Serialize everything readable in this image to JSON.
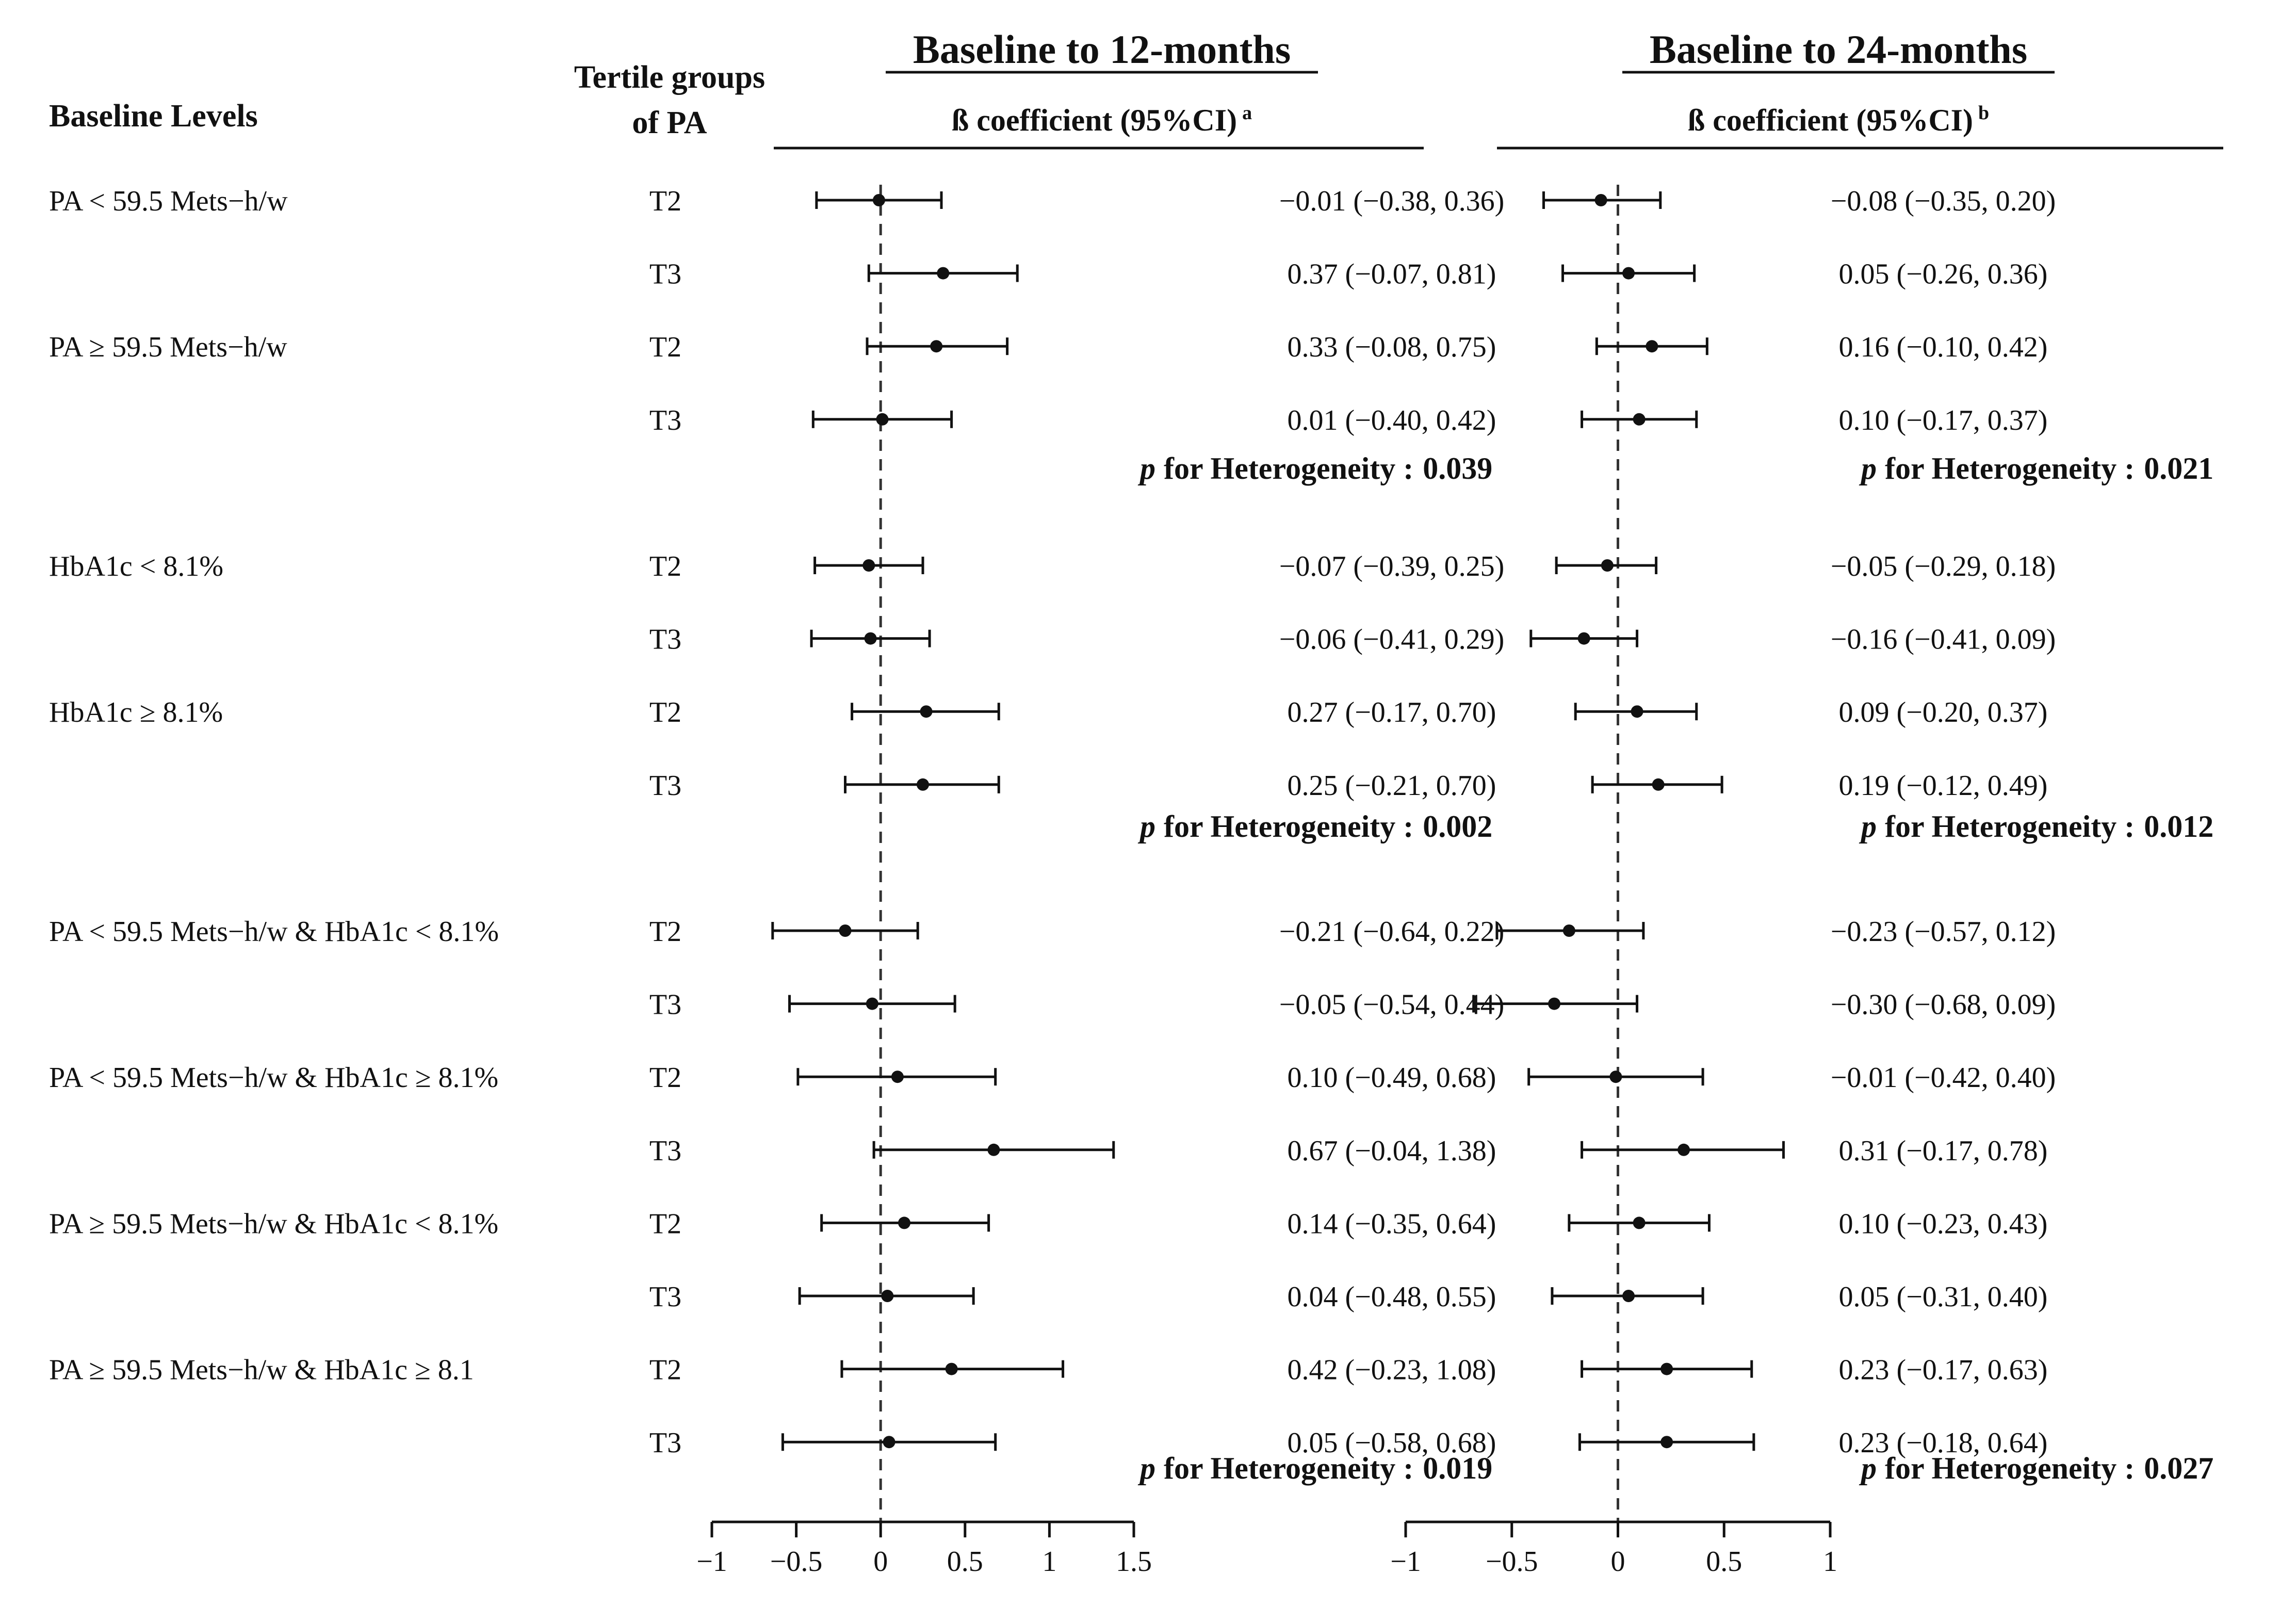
{
  "header": {
    "baseline_levels": "Baseline Levels",
    "tertile_line1": "Tertile groups",
    "tertile_line2": "of PA"
  },
  "colors": {
    "ink": "#111111",
    "background": "#ffffff"
  },
  "groups": [
    {
      "label": "PA < 59.5 Mets−h/w",
      "tertiles": [
        "T2",
        "T3"
      ]
    },
    {
      "label": "PA ≥ 59.5 Mets−h/w",
      "tertiles": [
        "T2",
        "T3"
      ]
    },
    {
      "label": "HbA1c < 8.1%",
      "tertiles": [
        "T2",
        "T3"
      ]
    },
    {
      "label": "HbA1c ≥ 8.1%",
      "tertiles": [
        "T2",
        "T3"
      ]
    },
    {
      "label": "PA < 59.5 Mets−h/w & HbA1c < 8.1%",
      "tertiles": [
        "T2",
        "T3"
      ]
    },
    {
      "label": "PA < 59.5 Mets−h/w & HbA1c ≥ 8.1%",
      "tertiles": [
        "T2",
        "T3"
      ]
    },
    {
      "label": "PA ≥ 59.5 Mets−h/w & HbA1c < 8.1%",
      "tertiles": [
        "T2",
        "T3"
      ]
    },
    {
      "label": "PA ≥ 59.5 Mets−h/w & HbA1c ≥ 8.1",
      "tertiles": [
        "T2",
        "T3"
      ]
    }
  ],
  "chart_data": [
    {
      "type": "forest",
      "title": "Baseline to 12-months",
      "subtitle": "ß coefficient (95%CI)",
      "subtitle_sup": "a",
      "xlim": [
        -1,
        1.5
      ],
      "xticks": [
        -1,
        -0.5,
        0,
        0.5,
        1,
        1.5
      ],
      "xtick_labels": [
        "−1",
        "−0.5",
        "0",
        "0.5",
        "1",
        "1.5"
      ],
      "reference_line": 0,
      "heterogeneity_label": "for Heterogeneity :",
      "heterogeneity_p_symbol": "p",
      "heterogeneity": [
        "0.039",
        "0.002",
        "0.019"
      ],
      "rows": [
        {
          "group": 0,
          "tertile": "T2",
          "est": -0.01,
          "lo": -0.38,
          "hi": 0.36,
          "label": "−0.01 (−0.38, 0.36)"
        },
        {
          "group": 0,
          "tertile": "T3",
          "est": 0.37,
          "lo": -0.07,
          "hi": 0.81,
          "label": "0.37 (−0.07, 0.81)"
        },
        {
          "group": 1,
          "tertile": "T2",
          "est": 0.33,
          "lo": -0.08,
          "hi": 0.75,
          "label": "0.33 (−0.08, 0.75)"
        },
        {
          "group": 1,
          "tertile": "T3",
          "est": 0.01,
          "lo": -0.4,
          "hi": 0.42,
          "label": "0.01 (−0.40, 0.42)"
        },
        {
          "group": 2,
          "tertile": "T2",
          "est": -0.07,
          "lo": -0.39,
          "hi": 0.25,
          "label": "−0.07 (−0.39, 0.25)"
        },
        {
          "group": 2,
          "tertile": "T3",
          "est": -0.06,
          "lo": -0.41,
          "hi": 0.29,
          "label": "−0.06 (−0.41, 0.29)"
        },
        {
          "group": 3,
          "tertile": "T2",
          "est": 0.27,
          "lo": -0.17,
          "hi": 0.7,
          "label": "0.27 (−0.17, 0.70)"
        },
        {
          "group": 3,
          "tertile": "T3",
          "est": 0.25,
          "lo": -0.21,
          "hi": 0.7,
          "label": "0.25 (−0.21, 0.70)"
        },
        {
          "group": 4,
          "tertile": "T2",
          "est": -0.21,
          "lo": -0.64,
          "hi": 0.22,
          "label": "−0.21 (−0.64, 0.22)"
        },
        {
          "group": 4,
          "tertile": "T3",
          "est": -0.05,
          "lo": -0.54,
          "hi": 0.44,
          "label": "−0.05 (−0.54, 0.44)"
        },
        {
          "group": 5,
          "tertile": "T2",
          "est": 0.1,
          "lo": -0.49,
          "hi": 0.68,
          "label": "0.10 (−0.49, 0.68)"
        },
        {
          "group": 5,
          "tertile": "T3",
          "est": 0.67,
          "lo": -0.04,
          "hi": 1.38,
          "label": "0.67 (−0.04, 1.38)"
        },
        {
          "group": 6,
          "tertile": "T2",
          "est": 0.14,
          "lo": -0.35,
          "hi": 0.64,
          "label": "0.14 (−0.35, 0.64)"
        },
        {
          "group": 6,
          "tertile": "T3",
          "est": 0.04,
          "lo": -0.48,
          "hi": 0.55,
          "label": "0.04 (−0.48, 0.55)"
        },
        {
          "group": 7,
          "tertile": "T2",
          "est": 0.42,
          "lo": -0.23,
          "hi": 1.08,
          "label": "0.42 (−0.23, 1.08)"
        },
        {
          "group": 7,
          "tertile": "T3",
          "est": 0.05,
          "lo": -0.58,
          "hi": 0.68,
          "label": "0.05 (−0.58, 0.68)"
        }
      ]
    },
    {
      "type": "forest",
      "title": "Baseline to 24-months",
      "subtitle": "ß coefficient (95%CI)",
      "subtitle_sup": "b",
      "xlim": [
        -1,
        1
      ],
      "xticks": [
        -1,
        -0.5,
        0,
        0.5,
        1
      ],
      "xtick_labels": [
        "−1",
        "−0.5",
        "0",
        "0.5",
        "1"
      ],
      "reference_line": 0,
      "heterogeneity_label": "for Heterogeneity :",
      "heterogeneity_p_symbol": "p",
      "heterogeneity": [
        "0.021",
        "0.012",
        "0.027"
      ],
      "rows": [
        {
          "group": 0,
          "tertile": "T2",
          "est": -0.08,
          "lo": -0.35,
          "hi": 0.2,
          "label": "−0.08 (−0.35, 0.20)"
        },
        {
          "group": 0,
          "tertile": "T3",
          "est": 0.05,
          "lo": -0.26,
          "hi": 0.36,
          "label": "0.05 (−0.26, 0.36)"
        },
        {
          "group": 1,
          "tertile": "T2",
          "est": 0.16,
          "lo": -0.1,
          "hi": 0.42,
          "label": "0.16 (−0.10, 0.42)"
        },
        {
          "group": 1,
          "tertile": "T3",
          "est": 0.1,
          "lo": -0.17,
          "hi": 0.37,
          "label": "0.10 (−0.17, 0.37)"
        },
        {
          "group": 2,
          "tertile": "T2",
          "est": -0.05,
          "lo": -0.29,
          "hi": 0.18,
          "label": "−0.05 (−0.29, 0.18)"
        },
        {
          "group": 2,
          "tertile": "T3",
          "est": -0.16,
          "lo": -0.41,
          "hi": 0.09,
          "label": "−0.16 (−0.41, 0.09)"
        },
        {
          "group": 3,
          "tertile": "T2",
          "est": 0.09,
          "lo": -0.2,
          "hi": 0.37,
          "label": "0.09 (−0.20, 0.37)"
        },
        {
          "group": 3,
          "tertile": "T3",
          "est": 0.19,
          "lo": -0.12,
          "hi": 0.49,
          "label": "0.19 (−0.12, 0.49)"
        },
        {
          "group": 4,
          "tertile": "T2",
          "est": -0.23,
          "lo": -0.57,
          "hi": 0.12,
          "label": "−0.23 (−0.57, 0.12)"
        },
        {
          "group": 4,
          "tertile": "T3",
          "est": -0.3,
          "lo": -0.68,
          "hi": 0.09,
          "label": "−0.30 (−0.68, 0.09)"
        },
        {
          "group": 5,
          "tertile": "T2",
          "est": -0.01,
          "lo": -0.42,
          "hi": 0.4,
          "label": "−0.01 (−0.42, 0.40)"
        },
        {
          "group": 5,
          "tertile": "T3",
          "est": 0.31,
          "lo": -0.17,
          "hi": 0.78,
          "label": "0.31 (−0.17, 0.78)"
        },
        {
          "group": 6,
          "tertile": "T2",
          "est": 0.1,
          "lo": -0.23,
          "hi": 0.43,
          "label": "0.10 (−0.23, 0.43)"
        },
        {
          "group": 6,
          "tertile": "T3",
          "est": 0.05,
          "lo": -0.31,
          "hi": 0.4,
          "label": "0.05 (−0.31, 0.40)"
        },
        {
          "group": 7,
          "tertile": "T2",
          "est": 0.23,
          "lo": -0.17,
          "hi": 0.63,
          "label": "0.23 (−0.17, 0.63)"
        },
        {
          "group": 7,
          "tertile": "T3",
          "est": 0.23,
          "lo": -0.18,
          "hi": 0.64,
          "label": "0.23 (−0.18, 0.64)"
        }
      ]
    }
  ]
}
